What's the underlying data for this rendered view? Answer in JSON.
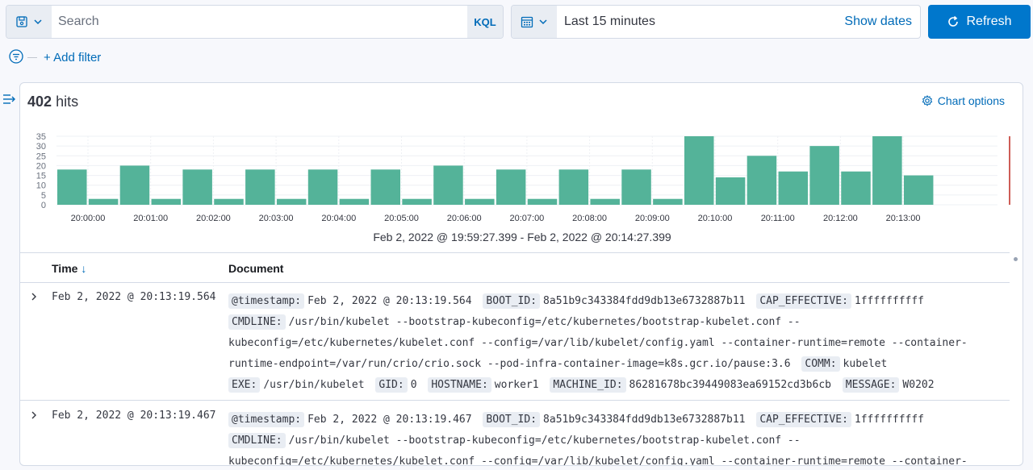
{
  "search": {
    "placeholder": "Search",
    "language": "KQL"
  },
  "time_picker": {
    "label": "Last 15 minutes",
    "show_dates": "Show dates"
  },
  "refresh_label": "Refresh",
  "add_filter_label": "+ Add filter",
  "hits": {
    "count": "402",
    "label": "hits"
  },
  "chart_options_label": "Chart options",
  "chart_data": {
    "type": "bar",
    "color": "#54b399",
    "ylim": [
      0,
      35
    ],
    "yticks": [
      "0",
      "5",
      "10",
      "15",
      "20",
      "25",
      "30",
      "35"
    ],
    "xticks": [
      "20:00:00",
      "20:01:00",
      "20:02:00",
      "20:03:00",
      "20:04:00",
      "20:05:00",
      "20:06:00",
      "20:07:00",
      "20:08:00",
      "20:09:00",
      "20:10:00",
      "20:11:00",
      "20:12:00",
      "20:13:00"
    ],
    "values": [
      18,
      3,
      20,
      3,
      18,
      3,
      18,
      3,
      18,
      3,
      18,
      3,
      20,
      3,
      18,
      3,
      18,
      3,
      18,
      3,
      35,
      14,
      25,
      17,
      30,
      17,
      35,
      15
    ],
    "now_marker_color": "#bd271e"
  },
  "time_range": "Feb 2, 2022 @ 19:59:27.399 - Feb 2, 2022 @ 20:14:27.399",
  "table": {
    "col_time": "Time",
    "col_document": "Document",
    "rows": [
      {
        "time": "Feb 2, 2022 @ 20:13:19.564",
        "fields": [
          {
            "k": "@timestamp:",
            "v": "Feb 2, 2022 @ 20:13:19.564"
          },
          {
            "k": "BOOT_ID:",
            "v": "8a51b9c343384fdd9db13e6732887b11"
          },
          {
            "k": "CAP_EFFECTIVE:",
            "v": "1ffffffffff"
          },
          {
            "k": "CMDLINE:",
            "v": "/usr/bin/kubelet --bootstrap-kubeconfig=/etc/kubernetes/bootstrap-kubelet.conf --kubeconfig=/etc/kubernetes/kubelet.conf --config=/var/lib/kubelet/config.yaml --container-runtime=remote --container-runtime-endpoint=/var/run/crio/crio.sock --pod-infra-container-image=k8s.gcr.io/pause:3.6"
          },
          {
            "k": "COMM:",
            "v": "kubelet"
          },
          {
            "k": "EXE:",
            "v": "/usr/bin/kubelet"
          },
          {
            "k": "GID:",
            "v": "0"
          },
          {
            "k": "HOSTNAME:",
            "v": "worker1"
          },
          {
            "k": "MACHINE_ID:",
            "v": "86281678bc39449083ea69152cd3b6cb"
          },
          {
            "k": "MESSAGE:",
            "v": "W0202"
          }
        ]
      },
      {
        "time": "Feb 2, 2022 @ 20:13:19.467",
        "fields": [
          {
            "k": "@timestamp:",
            "v": "Feb 2, 2022 @ 20:13:19.467"
          },
          {
            "k": "BOOT_ID:",
            "v": "8a51b9c343384fdd9db13e6732887b11"
          },
          {
            "k": "CAP_EFFECTIVE:",
            "v": "1ffffffffff"
          },
          {
            "k": "CMDLINE:",
            "v": "/usr/bin/kubelet --bootstrap-kubeconfig=/etc/kubernetes/bootstrap-kubelet.conf --kubeconfig=/etc/kubernetes/kubelet.conf --config=/var/lib/kubelet/config.yaml --container-runtime=remote --container-"
          }
        ]
      }
    ]
  }
}
